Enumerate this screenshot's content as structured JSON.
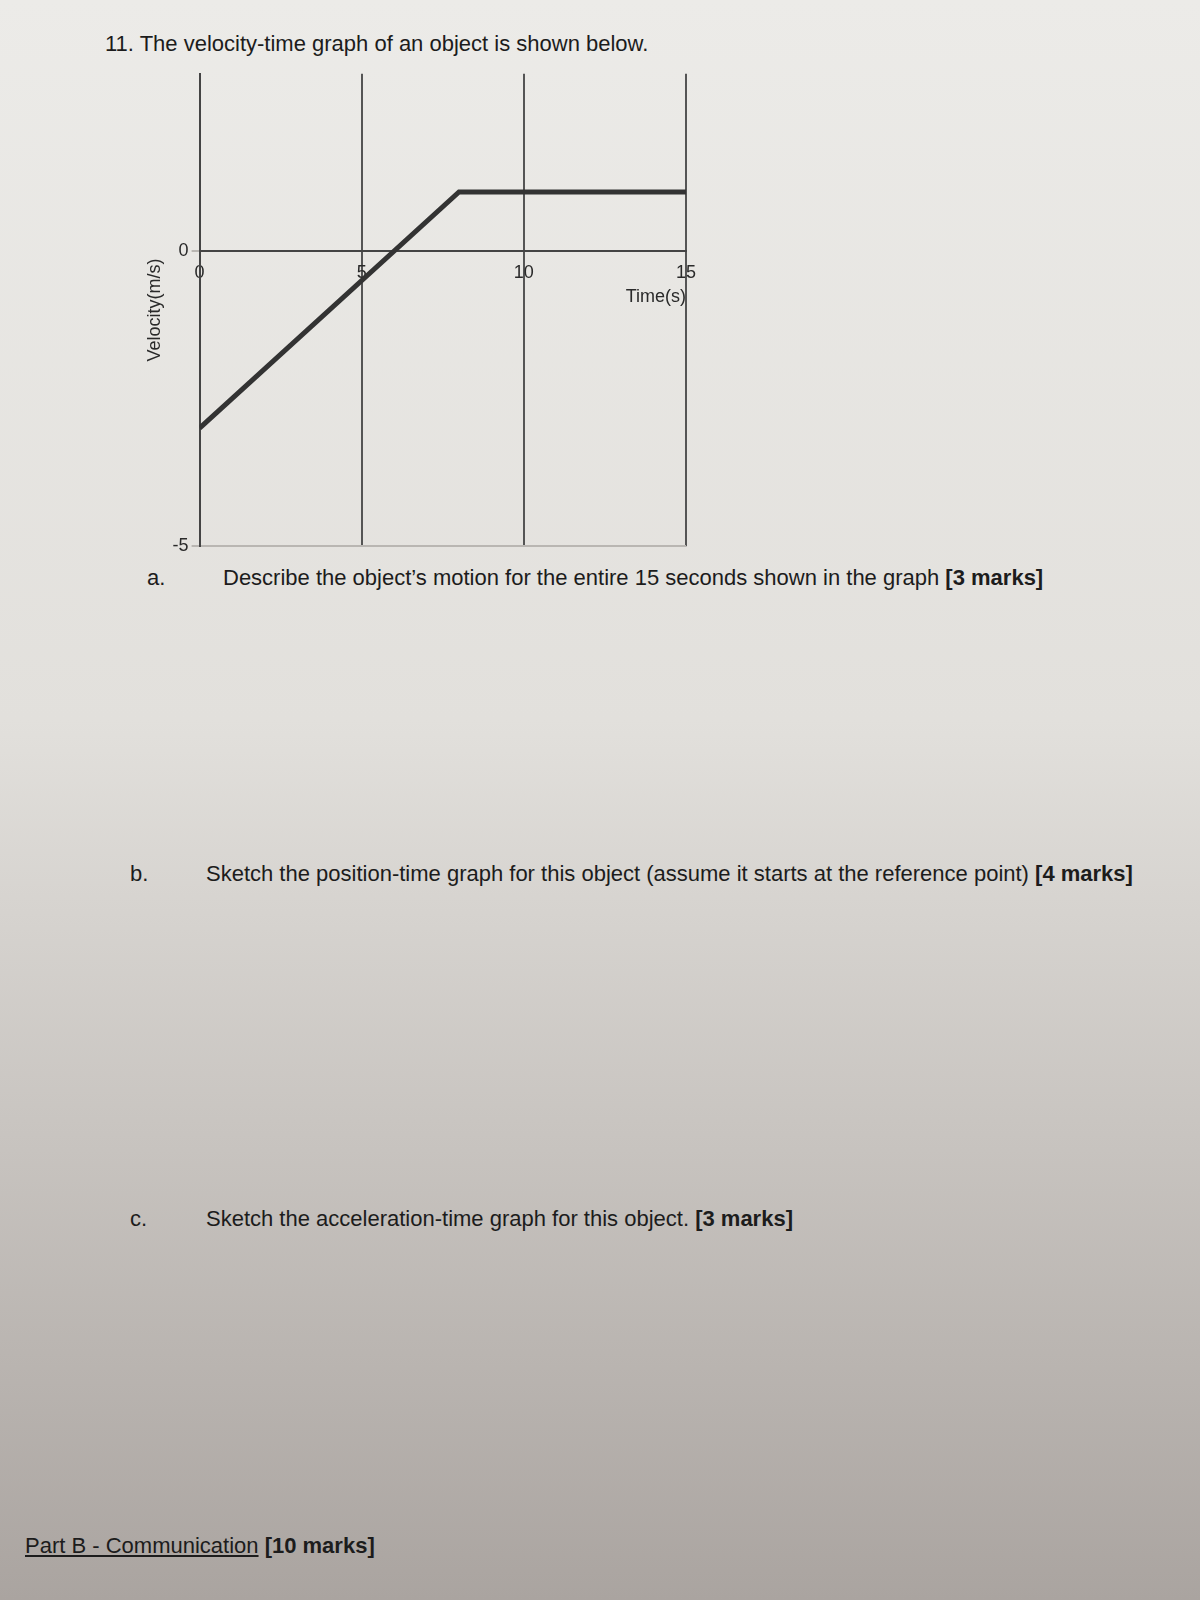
{
  "question": {
    "number": "11.",
    "text": "The velocity-time graph of an object is shown below."
  },
  "chart_data": {
    "type": "line",
    "x": [
      0,
      8,
      15
    ],
    "values": [
      -3,
      1,
      1
    ],
    "color": "#333333",
    "xlabel": "Time(s)",
    "ylabel": "Velocity(m/s)",
    "xlim": [
      0,
      15
    ],
    "ylim": [
      -5,
      3
    ],
    "xticks": [
      0,
      5,
      10,
      15
    ],
    "yticks": [
      -5,
      0
    ],
    "grid": true
  },
  "parts": [
    {
      "label": "a.",
      "text": "Describe the object’s motion for the entire 15 seconds shown in the graph",
      "marks": "[3 marks]"
    },
    {
      "label": "b.",
      "text": "Sketch the position-time graph for this object (assume it starts at the reference point)",
      "marks": "[4 marks]"
    },
    {
      "label": "c.",
      "text": "Sketch the acceleration-time graph for this object.",
      "marks": "[3 marks]"
    }
  ],
  "footer": {
    "title": "Part B - Communication",
    "marks": "[10 marks]"
  }
}
